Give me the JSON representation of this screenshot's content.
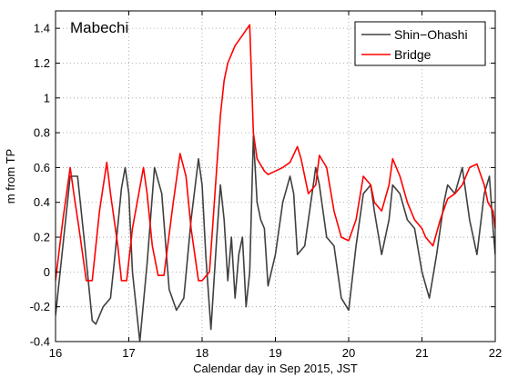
{
  "chart_data": {
    "type": "line",
    "annotation": "Mabechi",
    "xlabel": "Calendar day in Sep 2015, JST",
    "ylabel": "m from TP",
    "xlim": [
      16,
      22
    ],
    "ylim": [
      -0.4,
      1.5
    ],
    "xticks": [
      16,
      17,
      18,
      19,
      20,
      21,
      22
    ],
    "xtick_labels": [
      "16",
      "17",
      "18",
      "19",
      "20",
      "21",
      "22"
    ],
    "yticks": [
      -0.4,
      -0.2,
      0,
      0.2,
      0.4,
      0.6,
      0.8,
      1,
      1.2,
      1.4
    ],
    "ytick_labels": [
      "-0.4",
      "-0.2",
      "0",
      "0.2",
      "0.4",
      "0.6",
      "0.8",
      "1",
      "1.2",
      "1.4"
    ],
    "grid": true,
    "legend_position": "top-right",
    "series": [
      {
        "name": "Shin−Ohashi",
        "color": "#404040",
        "x": [
          16.0,
          16.1,
          16.2,
          16.3,
          16.4,
          16.5,
          16.55,
          16.65,
          16.75,
          16.8,
          16.9,
          16.95,
          17.0,
          17.05,
          17.15,
          17.25,
          17.35,
          17.45,
          17.55,
          17.65,
          17.75,
          17.85,
          17.95,
          18.0,
          18.05,
          18.12,
          18.2,
          18.25,
          18.3,
          18.35,
          18.4,
          18.45,
          18.5,
          18.55,
          18.6,
          18.65,
          18.7,
          18.75,
          18.8,
          18.85,
          18.9,
          19.0,
          19.1,
          19.2,
          19.25,
          19.3,
          19.4,
          19.5,
          19.55,
          19.6,
          19.7,
          19.8,
          19.9,
          20.0,
          20.1,
          20.2,
          20.3,
          20.35,
          20.45,
          20.55,
          20.6,
          20.7,
          20.8,
          20.9,
          21.0,
          21.1,
          21.2,
          21.3,
          21.35,
          21.45,
          21.55,
          21.65,
          21.75,
          21.85,
          21.92,
          21.97,
          22.0
        ],
        "y": [
          -0.25,
          0.15,
          0.55,
          0.55,
          0.15,
          -0.28,
          -0.3,
          -0.2,
          -0.15,
          0.05,
          0.48,
          0.6,
          0.45,
          0.0,
          -0.4,
          0.05,
          0.6,
          0.45,
          -0.1,
          -0.22,
          -0.15,
          0.3,
          0.65,
          0.5,
          0.1,
          -0.33,
          0.2,
          0.5,
          0.3,
          -0.05,
          0.2,
          -0.15,
          0.1,
          0.2,
          -0.2,
          0.0,
          0.78,
          0.4,
          0.3,
          0.25,
          -0.08,
          0.1,
          0.4,
          0.55,
          0.45,
          0.1,
          0.15,
          0.45,
          0.6,
          0.5,
          0.2,
          0.15,
          -0.15,
          -0.22,
          0.15,
          0.45,
          0.5,
          0.35,
          0.1,
          0.3,
          0.5,
          0.45,
          0.3,
          0.25,
          0.0,
          -0.15,
          0.1,
          0.4,
          0.5,
          0.45,
          0.6,
          0.3,
          0.1,
          0.45,
          0.55,
          0.25,
          0.1
        ]
      },
      {
        "name": "Bridge",
        "color": "#ff0000",
        "x": [
          16.0,
          16.1,
          16.2,
          16.25,
          16.32,
          16.42,
          16.5,
          16.6,
          16.7,
          16.75,
          16.85,
          16.9,
          16.97,
          17.05,
          17.2,
          17.25,
          17.32,
          17.4,
          17.48,
          17.6,
          17.7,
          17.78,
          17.85,
          17.95,
          18.0,
          18.1,
          18.2,
          18.25,
          18.3,
          18.35,
          18.45,
          18.55,
          18.65,
          18.7,
          18.75,
          18.85,
          18.9,
          19.0,
          19.1,
          19.2,
          19.3,
          19.35,
          19.45,
          19.55,
          19.6,
          19.7,
          19.8,
          19.9,
          20.0,
          20.1,
          20.2,
          20.3,
          20.35,
          20.45,
          20.55,
          20.6,
          20.7,
          20.8,
          20.9,
          21.0,
          21.05,
          21.15,
          21.25,
          21.35,
          21.45,
          21.55,
          21.65,
          21.75,
          21.85,
          21.9,
          21.97,
          22.0
        ],
        "y": [
          -0.05,
          0.3,
          0.6,
          0.45,
          0.25,
          -0.05,
          -0.05,
          0.35,
          0.63,
          0.45,
          0.15,
          -0.05,
          -0.05,
          0.25,
          0.6,
          0.45,
          0.15,
          -0.02,
          -0.02,
          0.38,
          0.68,
          0.55,
          0.25,
          -0.05,
          -0.05,
          0.0,
          0.6,
          0.9,
          1.1,
          1.2,
          1.3,
          1.36,
          1.42,
          0.8,
          0.65,
          0.58,
          0.56,
          0.58,
          0.6,
          0.63,
          0.72,
          0.65,
          0.45,
          0.5,
          0.67,
          0.6,
          0.35,
          0.2,
          0.18,
          0.3,
          0.55,
          0.5,
          0.4,
          0.35,
          0.5,
          0.65,
          0.55,
          0.4,
          0.3,
          0.25,
          0.2,
          0.15,
          0.3,
          0.42,
          0.45,
          0.5,
          0.6,
          0.62,
          0.5,
          0.4,
          0.35,
          0.25
        ]
      }
    ]
  }
}
